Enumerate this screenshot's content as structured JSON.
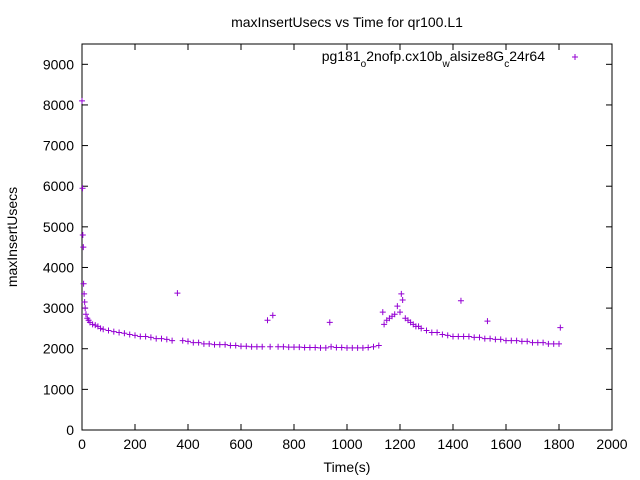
{
  "chart_data": {
    "type": "scatter",
    "title": "maxInsertUsecs vs Time for qr100.L1",
    "xlabel": "Time(s)",
    "ylabel": "maxInsertUsecs",
    "xlim": [
      0,
      2000
    ],
    "ylim": [
      0,
      9500
    ],
    "xticks": [
      0,
      200,
      400,
      600,
      800,
      1000,
      1200,
      1400,
      1600,
      1800,
      2000
    ],
    "yticks": [
      0,
      1000,
      2000,
      3000,
      4000,
      5000,
      6000,
      7000,
      8000,
      9000
    ],
    "grid": false,
    "legend": "top-right",
    "marker": "+",
    "color": "#9400d3",
    "series": [
      {
        "name_parts": [
          "pg181",
          "o",
          "2nofp.cx10b",
          "w",
          "alsize8G",
          "c",
          "24r64"
        ],
        "name_subscripts": [
          false,
          true,
          false,
          true,
          false,
          true,
          false
        ],
        "x": [
          0,
          2,
          3,
          5,
          6,
          8,
          10,
          12,
          15,
          20,
          25,
          30,
          40,
          50,
          60,
          70,
          80,
          100,
          120,
          140,
          160,
          180,
          200,
          220,
          240,
          260,
          280,
          300,
          320,
          340,
          360,
          380,
          400,
          420,
          440,
          460,
          480,
          500,
          520,
          540,
          560,
          580,
          600,
          620,
          640,
          660,
          680,
          700,
          710,
          720,
          740,
          760,
          780,
          800,
          820,
          840,
          860,
          880,
          900,
          920,
          935,
          940,
          960,
          980,
          1000,
          1020,
          1040,
          1060,
          1080,
          1100,
          1120,
          1135,
          1140,
          1150,
          1160,
          1170,
          1180,
          1190,
          1200,
          1205,
          1210,
          1220,
          1230,
          1240,
          1250,
          1260,
          1270,
          1280,
          1300,
          1320,
          1340,
          1360,
          1380,
          1400,
          1420,
          1430,
          1440,
          1460,
          1480,
          1500,
          1520,
          1530,
          1540,
          1560,
          1580,
          1600,
          1620,
          1640,
          1660,
          1680,
          1700,
          1720,
          1740,
          1760,
          1780,
          1800,
          1805
        ],
        "y": [
          8100,
          5950,
          4800,
          4500,
          3600,
          3350,
          3150,
          3000,
          2850,
          2750,
          2700,
          2650,
          2600,
          2580,
          2550,
          2500,
          2480,
          2450,
          2420,
          2400,
          2380,
          2350,
          2330,
          2300,
          2300,
          2280,
          2250,
          2250,
          2230,
          2200,
          3370,
          2200,
          2180,
          2150,
          2150,
          2120,
          2120,
          2100,
          2100,
          2100,
          2080,
          2080,
          2060,
          2060,
          2050,
          2050,
          2050,
          2700,
          2050,
          2820,
          2050,
          2050,
          2040,
          2040,
          2040,
          2030,
          2030,
          2030,
          2020,
          2020,
          2650,
          2050,
          2030,
          2030,
          2020,
          2020,
          2020,
          2020,
          2030,
          2050,
          2080,
          2900,
          2600,
          2700,
          2750,
          2800,
          2850,
          3050,
          2900,
          3350,
          3200,
          2750,
          2700,
          2650,
          2600,
          2550,
          2550,
          2500,
          2450,
          2400,
          2400,
          2350,
          2330,
          2300,
          2300,
          3180,
          2300,
          2300,
          2280,
          2280,
          2250,
          2680,
          2250,
          2230,
          2230,
          2200,
          2200,
          2200,
          2180,
          2180,
          2150,
          2150,
          2150,
          2120,
          2120,
          2120,
          2520
        ]
      }
    ]
  }
}
